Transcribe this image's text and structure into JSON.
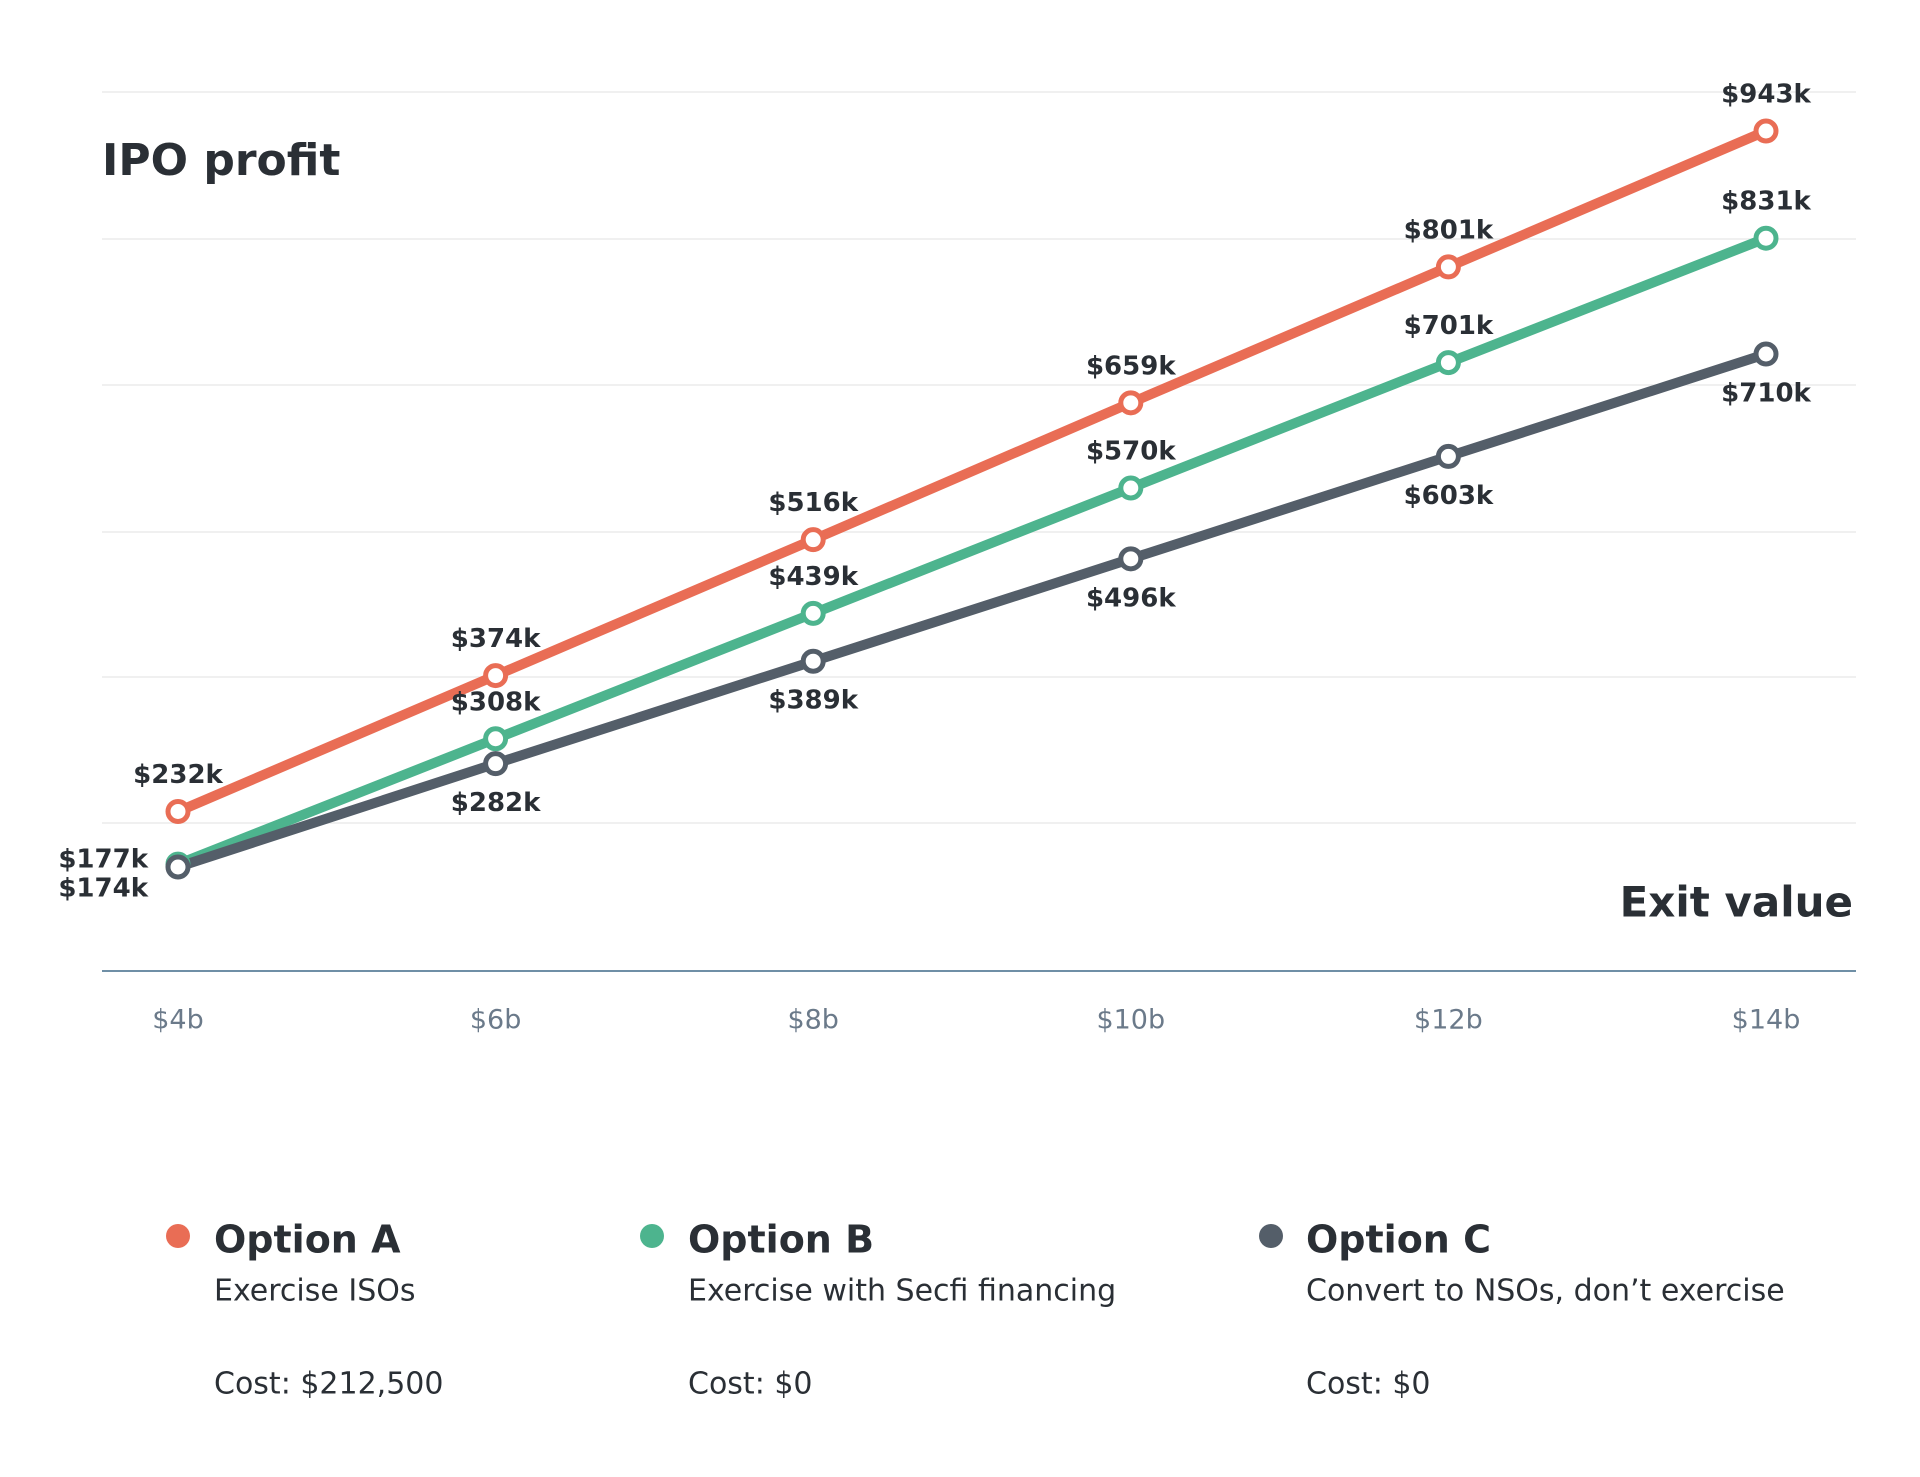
{
  "chart_data": {
    "type": "line",
    "y_label": "IPO profit",
    "x_label": "Exit value",
    "categories": [
      "$4b",
      "$6b",
      "$8b",
      "$10b",
      "$12b",
      "$14b"
    ],
    "grid": true,
    "series": [
      {
        "name": "Option A",
        "description": "Exercise ISOs",
        "cost": "Cost: $212,500",
        "color": "#e96d55",
        "values": [
          232,
          374,
          516,
          659,
          801,
          943
        ],
        "value_labels": [
          "$232k",
          "$374k",
          "$516k",
          "$659k",
          "$801k",
          "$943k"
        ]
      },
      {
        "name": "Option B",
        "description": "Exercise with Secfi financing",
        "cost": "Cost: $0",
        "color": "#4db48e",
        "values": [
          177,
          308,
          439,
          570,
          701,
          831
        ],
        "value_labels": [
          "$177k",
          "$308k",
          "$439k",
          "$570k",
          "$701k",
          "$831k"
        ]
      },
      {
        "name": "Option C",
        "description": "Convert to NSOs, don’t exercise",
        "cost": "Cost: $0",
        "color": "#545e69",
        "values": [
          174,
          282,
          389,
          496,
          603,
          710
        ],
        "value_labels": [
          "$174k",
          "$282k",
          "$389k",
          "$496k",
          "$603k",
          "$710k"
        ]
      }
    ]
  }
}
